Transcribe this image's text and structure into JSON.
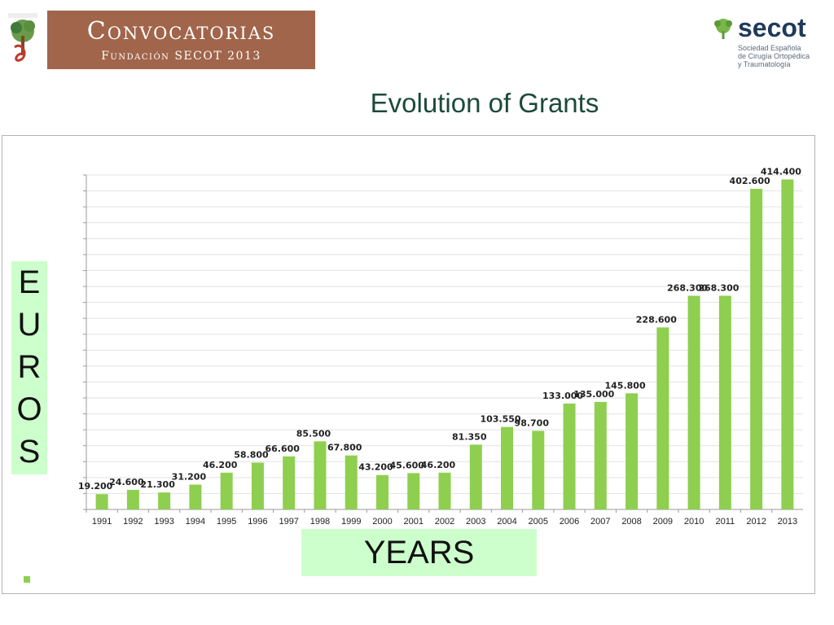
{
  "header": {
    "banner_title": "Convocatorias",
    "banner_subtitle": "Fundación SECOT 2013",
    "org_name": "secot",
    "org_description": "Sociedad Española\nde Cirugía Ortopédica\ny Traumatología"
  },
  "slide_title": "Evolution of Grants",
  "colors": {
    "bar": "#8ecf4f",
    "banner": "#a0654a",
    "label_box": "#ccffcc"
  },
  "chart_data": {
    "type": "bar",
    "title": "Evolution of Grants",
    "xlabel": "YEARS",
    "ylabel": "EUROS",
    "categories": [
      "1991",
      "1992",
      "1993",
      "1994",
      "1995",
      "1996",
      "1997",
      "1998",
      "1999",
      "2000",
      "2001",
      "2002",
      "2003",
      "2004",
      "2005",
      "2006",
      "2007",
      "2008",
      "2009",
      "2010",
      "2011",
      "2012",
      "2013"
    ],
    "values": [
      19200,
      24600,
      21300,
      31200,
      46200,
      58800,
      66600,
      85500,
      67800,
      43200,
      45600,
      46200,
      81350,
      103550,
      98700,
      133000,
      135000,
      145800,
      228600,
      268300,
      268300,
      402600,
      414400
    ],
    "data_labels": [
      "19.200",
      "24.600",
      "21.300",
      "31.200",
      "46.200",
      "58.800",
      "66.600",
      "85.500",
      "67.800",
      "43.200",
      "45.600",
      "46.200",
      "81.350",
      "103.550",
      "98.700",
      "133.000",
      "135.000",
      "145.800",
      "228.600",
      "268.300",
      "268.300",
      "402.600",
      "414.400"
    ],
    "ylim": [
      0,
      420000
    ],
    "grid": true,
    "legend": "none"
  }
}
